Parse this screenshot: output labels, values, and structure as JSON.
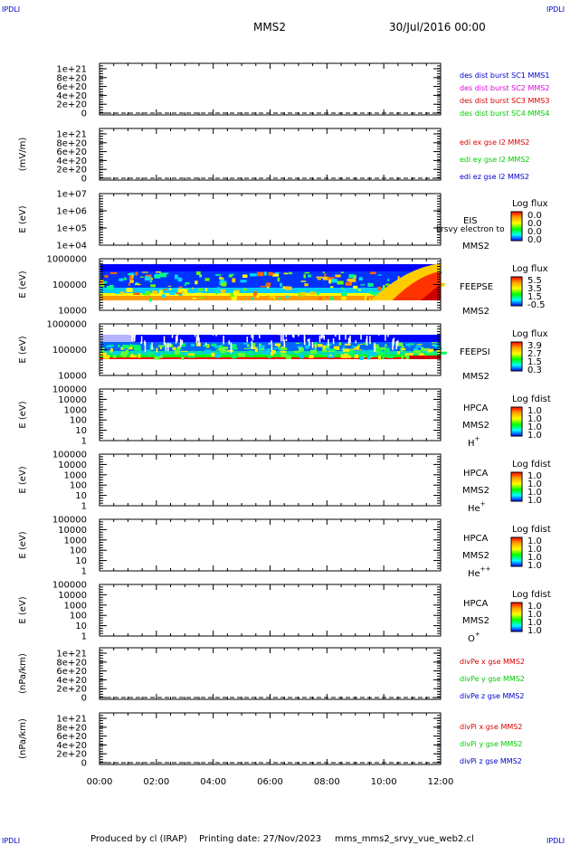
{
  "corner_label": "IPDLI",
  "header": {
    "spacecraft": "MMS2",
    "date": "30/Jul/2016 00:00"
  },
  "footer": {
    "produced_by": "Produced by cl (IRAP)",
    "printing_date": "Printing date: 27/Nov/2023",
    "filename": "mms_mms2_srvy_vue_web2.cl"
  },
  "colors": {
    "red": "#dd0000",
    "magenta": "#dd00dd",
    "green": "#00cc00",
    "blue": "#0000cc"
  },
  "colorbar_stops": [
    "#ff0000",
    "#ffa500",
    "#ffff00",
    "#00ff00",
    "#00ffff",
    "#0000ff"
  ],
  "chart_data": [
    {
      "type": "line",
      "ylabels": [
        "1e+21",
        "8e+20",
        "6e+20",
        "4e+20",
        "2e+20",
        "0"
      ],
      "ylabel": "",
      "dashed_zero": true,
      "legend": [
        {
          "text": "des dist burst SC1 MMS1",
          "color": "#0000cc"
        },
        {
          "text": "des dist burst SC2 MMS2",
          "color": "#dd00dd"
        },
        {
          "text": "des dist burst SC3 MMS3",
          "color": "#dd0000"
        },
        {
          "text": "des dist burst SC4 MMS4",
          "color": "#00cc00"
        }
      ]
    },
    {
      "type": "line",
      "ylabels": [
        "1e+21",
        "8e+20",
        "6e+20",
        "4e+20",
        "2e+20",
        "0"
      ],
      "ylabel": "(mV/m)",
      "dashed_zero": true,
      "legend": [
        {
          "text": "edi ex gse l2 MMS2",
          "color": "#dd0000"
        },
        {
          "text": "edi ey gse l2 MMS2",
          "color": "#00cc00"
        },
        {
          "text": "edi ez gse l2 MMS2",
          "color": "#0000cc"
        }
      ]
    },
    {
      "type": "heatmap",
      "ylabels": [
        "1e+07",
        "1e+06",
        "1e+05",
        "1e+04"
      ],
      "ylabel": "E (eV)",
      "instrument": "EIS",
      "sc": "MMS2",
      "cb_title": "Log flux",
      "cb_ticks": [
        "0.0",
        "0.0",
        "0.0",
        "0.0"
      ],
      "overlay_text": "Lrsvy electron to",
      "spectrum": "none"
    },
    {
      "type": "heatmap",
      "ylabels": [
        "1000000",
        "100000",
        "10000"
      ],
      "ylabel": "E (eV)",
      "instrument": "FEEPSE",
      "sc": "MMS2",
      "cb_title": "Log flux",
      "cb_ticks": [
        "5.5",
        "3.5",
        "1.5",
        "-0.5"
      ],
      "spectrum": "electron"
    },
    {
      "type": "heatmap",
      "ylabels": [
        "1000000",
        "100000",
        "10000"
      ],
      "ylabel": "E (eV)",
      "instrument": "FEEPSI",
      "sc": "MMS2",
      "cb_title": "Log flux",
      "cb_ticks": [
        "3.9",
        "2.7",
        "1.5",
        "0.3"
      ],
      "spectrum": "ion"
    },
    {
      "type": "heatmap",
      "ylabels": [
        "100000",
        "10000",
        "1000",
        "100",
        "10",
        "1"
      ],
      "ylabel": "E (eV)",
      "instrument": "HPCA",
      "sc": "MMS2",
      "species": "H",
      "charge": "+",
      "cb_title": "Log fdist",
      "cb_ticks": [
        "1.0",
        "1.0",
        "1.0",
        "1.0"
      ],
      "spectrum": "none"
    },
    {
      "type": "heatmap",
      "ylabels": [
        "100000",
        "10000",
        "1000",
        "100",
        "10",
        "1"
      ],
      "ylabel": "E (eV)",
      "instrument": "HPCA",
      "sc": "MMS2",
      "species": "He",
      "charge": "+",
      "cb_title": "Log fdist",
      "cb_ticks": [
        "1.0",
        "1.0",
        "1.0",
        "1.0"
      ],
      "spectrum": "none"
    },
    {
      "type": "heatmap",
      "ylabels": [
        "100000",
        "10000",
        "1000",
        "100",
        "10",
        "1"
      ],
      "ylabel": "E (eV)",
      "instrument": "HPCA",
      "sc": "MMS2",
      "species": "He",
      "charge": "++",
      "cb_title": "Log fdist",
      "cb_ticks": [
        "1.0",
        "1.0",
        "1.0",
        "1.0"
      ],
      "spectrum": "none"
    },
    {
      "type": "heatmap",
      "ylabels": [
        "100000",
        "10000",
        "1000",
        "100",
        "10",
        "1"
      ],
      "ylabel": "E (eV)",
      "instrument": "HPCA",
      "sc": "MMS2",
      "species": "O",
      "charge": "+",
      "cb_title": "Log fdist",
      "cb_ticks": [
        "1.0",
        "1.0",
        "1.0",
        "1.0"
      ],
      "spectrum": "none"
    },
    {
      "type": "line",
      "ylabels": [
        "1e+21",
        "8e+20",
        "6e+20",
        "4e+20",
        "2e+20",
        "0"
      ],
      "ylabel": "(nPa/km)",
      "dashed_zero": true,
      "legend": [
        {
          "text": "divPe x gse MMS2",
          "color": "#dd0000"
        },
        {
          "text": "divPe y gse MMS2",
          "color": "#00cc00"
        },
        {
          "text": "divPe z gse MMS2",
          "color": "#0000cc"
        }
      ]
    },
    {
      "type": "line",
      "ylabels": [
        "1e+21",
        "8e+20",
        "6e+20",
        "4e+20",
        "2e+20",
        "0"
      ],
      "ylabel": "(nPa/km)",
      "dashed_zero": true,
      "legend": [
        {
          "text": "divPi x gse MMS2",
          "color": "#dd0000"
        },
        {
          "text": "divPi y gse MMS2",
          "color": "#00cc00"
        },
        {
          "text": "divPi z gse MMS2",
          "color": "#0000cc"
        }
      ]
    }
  ],
  "xaxis": {
    "ticks": [
      "00:00",
      "02:00",
      "04:00",
      "06:00",
      "08:00",
      "10:00",
      "12:00"
    ],
    "range_hours": [
      0,
      12
    ]
  }
}
